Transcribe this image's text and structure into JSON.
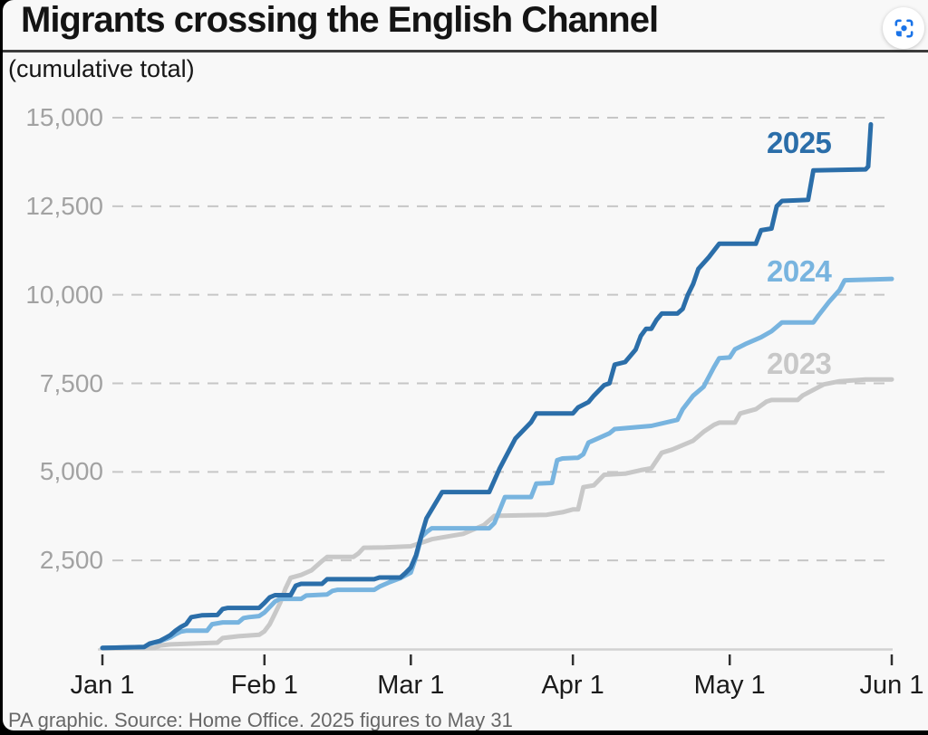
{
  "header": {
    "title": "Migrants crossing the English Channel",
    "subtitle": "(cumulative total)"
  },
  "footer": {
    "source": "PA graphic. Source: Home Office. 2025 figures to May 31"
  },
  "lens_button": {
    "icon": "camera-lens-scan-icon",
    "accent_color": "#1a73e8"
  },
  "chart_data": {
    "type": "line",
    "title": "Migrants crossing the English Channel",
    "subtitle": "(cumulative total)",
    "note": "2025 figures to May 31",
    "ylim": [
      0,
      15000
    ],
    "x_range": "Jan 1 to Jun 1",
    "grid": "horizontal-dashed",
    "legend_position": "inline-right",
    "axis_colors": {
      "grid": "#c6c6c6",
      "baseline": "#d2d2d2",
      "tick": "#2f2f2f"
    },
    "y_ticks": [
      {
        "value": 15000,
        "label": "15,000"
      },
      {
        "value": 12500,
        "label": "12,500"
      },
      {
        "value": 10000,
        "label": "10,000"
      },
      {
        "value": 7500,
        "label": "7,500"
      },
      {
        "value": 5000,
        "label": "5,000"
      },
      {
        "value": 2500,
        "label": "2,500"
      }
    ],
    "x_ticks": [
      {
        "day": 0,
        "label": "Jan 1"
      },
      {
        "day": 31,
        "label": "Feb 1"
      },
      {
        "day": 59,
        "label": "Mar 1"
      },
      {
        "day": 90,
        "label": "Apr 1"
      },
      {
        "day": 120,
        "label": "May 1"
      },
      {
        "day": 151,
        "label": "Jun 1"
      }
    ],
    "series": [
      {
        "name": "2025",
        "color": "#2b6ea9",
        "points": [
          [
            0,
            30
          ],
          [
            8,
            60
          ],
          [
            9,
            150
          ],
          [
            11,
            230
          ],
          [
            12,
            310
          ],
          [
            13,
            390
          ],
          [
            14,
            520
          ],
          [
            15,
            620
          ],
          [
            16,
            700
          ],
          [
            17,
            900
          ],
          [
            19,
            950
          ],
          [
            22,
            960
          ],
          [
            23,
            1130
          ],
          [
            24,
            1160
          ],
          [
            30,
            1160
          ],
          [
            31,
            1300
          ],
          [
            32,
            1460
          ],
          [
            33,
            1520
          ],
          [
            36,
            1520
          ],
          [
            37,
            1790
          ],
          [
            38,
            1840
          ],
          [
            42,
            1840
          ],
          [
            43,
            1970
          ],
          [
            52,
            1970
          ],
          [
            53,
            2020
          ],
          [
            57,
            2020
          ],
          [
            58,
            2150
          ],
          [
            59,
            2300
          ],
          [
            60,
            2650
          ],
          [
            61,
            3200
          ],
          [
            62,
            3690
          ],
          [
            65,
            4430
          ],
          [
            74,
            4430
          ],
          [
            76,
            5100
          ],
          [
            79,
            5940
          ],
          [
            82,
            6400
          ],
          [
            83,
            6650
          ],
          [
            90,
            6650
          ],
          [
            91,
            6820
          ],
          [
            93,
            6970
          ],
          [
            94,
            7150
          ],
          [
            96,
            7450
          ],
          [
            97,
            7500
          ],
          [
            98,
            8030
          ],
          [
            100,
            8100
          ],
          [
            102,
            8450
          ],
          [
            103,
            8840
          ],
          [
            104,
            9040
          ],
          [
            105,
            9040
          ],
          [
            106,
            9290
          ],
          [
            107,
            9470
          ],
          [
            110,
            9470
          ],
          [
            111,
            9600
          ],
          [
            112,
            10000
          ],
          [
            113,
            10300
          ],
          [
            114,
            10730
          ],
          [
            116,
            11060
          ],
          [
            118,
            11440
          ],
          [
            125,
            11440
          ],
          [
            126,
            11820
          ],
          [
            128,
            11870
          ],
          [
            129,
            12500
          ],
          [
            130,
            12650
          ],
          [
            135,
            12680
          ],
          [
            136,
            13510
          ],
          [
            146,
            13540
          ],
          [
            146.5,
            13620
          ],
          [
            147,
            14810
          ]
        ]
      },
      {
        "name": "2024",
        "color": "#78b4df",
        "points": [
          [
            0,
            30
          ],
          [
            8,
            60
          ],
          [
            9,
            140
          ],
          [
            11,
            220
          ],
          [
            13,
            330
          ],
          [
            14,
            420
          ],
          [
            15,
            490
          ],
          [
            16,
            515
          ],
          [
            20,
            515
          ],
          [
            21,
            700
          ],
          [
            23,
            750
          ],
          [
            26,
            750
          ],
          [
            27,
            875
          ],
          [
            28,
            900
          ],
          [
            30,
            930
          ],
          [
            31,
            1030
          ],
          [
            33,
            1340
          ],
          [
            34,
            1415
          ],
          [
            38,
            1415
          ],
          [
            39,
            1510
          ],
          [
            43,
            1540
          ],
          [
            44,
            1640
          ],
          [
            45,
            1670
          ],
          [
            52,
            1670
          ],
          [
            53,
            1760
          ],
          [
            55,
            1890
          ],
          [
            57,
            2000
          ],
          [
            59,
            2160
          ],
          [
            60,
            2600
          ],
          [
            61,
            3160
          ],
          [
            62,
            3300
          ],
          [
            63,
            3410
          ],
          [
            74,
            3410
          ],
          [
            75,
            3560
          ],
          [
            77,
            4290
          ],
          [
            82,
            4290
          ],
          [
            83,
            4670
          ],
          [
            86,
            4690
          ],
          [
            87,
            5330
          ],
          [
            88,
            5380
          ],
          [
            91,
            5400
          ],
          [
            92,
            5500
          ],
          [
            93,
            5830
          ],
          [
            95,
            5960
          ],
          [
            97,
            6090
          ],
          [
            98,
            6210
          ],
          [
            105,
            6300
          ],
          [
            110,
            6470
          ],
          [
            111,
            6770
          ],
          [
            113,
            7150
          ],
          [
            115,
            7400
          ],
          [
            117,
            7960
          ],
          [
            118,
            8210
          ],
          [
            120,
            8230
          ],
          [
            121,
            8460
          ],
          [
            123,
            8610
          ],
          [
            126,
            8800
          ],
          [
            128,
            8970
          ],
          [
            130,
            9220
          ],
          [
            136,
            9220
          ],
          [
            137,
            9420
          ],
          [
            139,
            9800
          ],
          [
            141,
            10130
          ],
          [
            142,
            10410
          ],
          [
            151,
            10450
          ]
        ]
      },
      {
        "name": "2023",
        "color": "#c8c8c8",
        "points": [
          [
            0,
            20
          ],
          [
            10,
            30
          ],
          [
            11,
            100
          ],
          [
            13,
            130
          ],
          [
            22,
            180
          ],
          [
            23,
            310
          ],
          [
            26,
            360
          ],
          [
            30,
            400
          ],
          [
            31,
            500
          ],
          [
            32,
            700
          ],
          [
            33,
            1000
          ],
          [
            34,
            1300
          ],
          [
            35,
            1700
          ],
          [
            36,
            2010
          ],
          [
            38,
            2090
          ],
          [
            40,
            2220
          ],
          [
            42,
            2480
          ],
          [
            43,
            2600
          ],
          [
            48,
            2600
          ],
          [
            49,
            2700
          ],
          [
            50,
            2860
          ],
          [
            54,
            2870
          ],
          [
            59,
            2900
          ],
          [
            63,
            3100
          ],
          [
            69,
            3250
          ],
          [
            73,
            3500
          ],
          [
            75,
            3760
          ],
          [
            85,
            3790
          ],
          [
            88,
            3860
          ],
          [
            90,
            3940
          ],
          [
            91,
            3940
          ],
          [
            92,
            4570
          ],
          [
            94,
            4620
          ],
          [
            96,
            4920
          ],
          [
            100,
            4950
          ],
          [
            103,
            5050
          ],
          [
            105,
            5100
          ],
          [
            107,
            5540
          ],
          [
            109,
            5630
          ],
          [
            113,
            5880
          ],
          [
            115,
            6130
          ],
          [
            117,
            6330
          ],
          [
            118,
            6390
          ],
          [
            121,
            6390
          ],
          [
            122,
            6650
          ],
          [
            125,
            6770
          ],
          [
            127,
            6980
          ],
          [
            128,
            7030
          ],
          [
            133,
            7030
          ],
          [
            134,
            7160
          ],
          [
            138,
            7470
          ],
          [
            141,
            7560
          ],
          [
            146,
            7610
          ],
          [
            151,
            7610
          ]
        ]
      }
    ]
  }
}
